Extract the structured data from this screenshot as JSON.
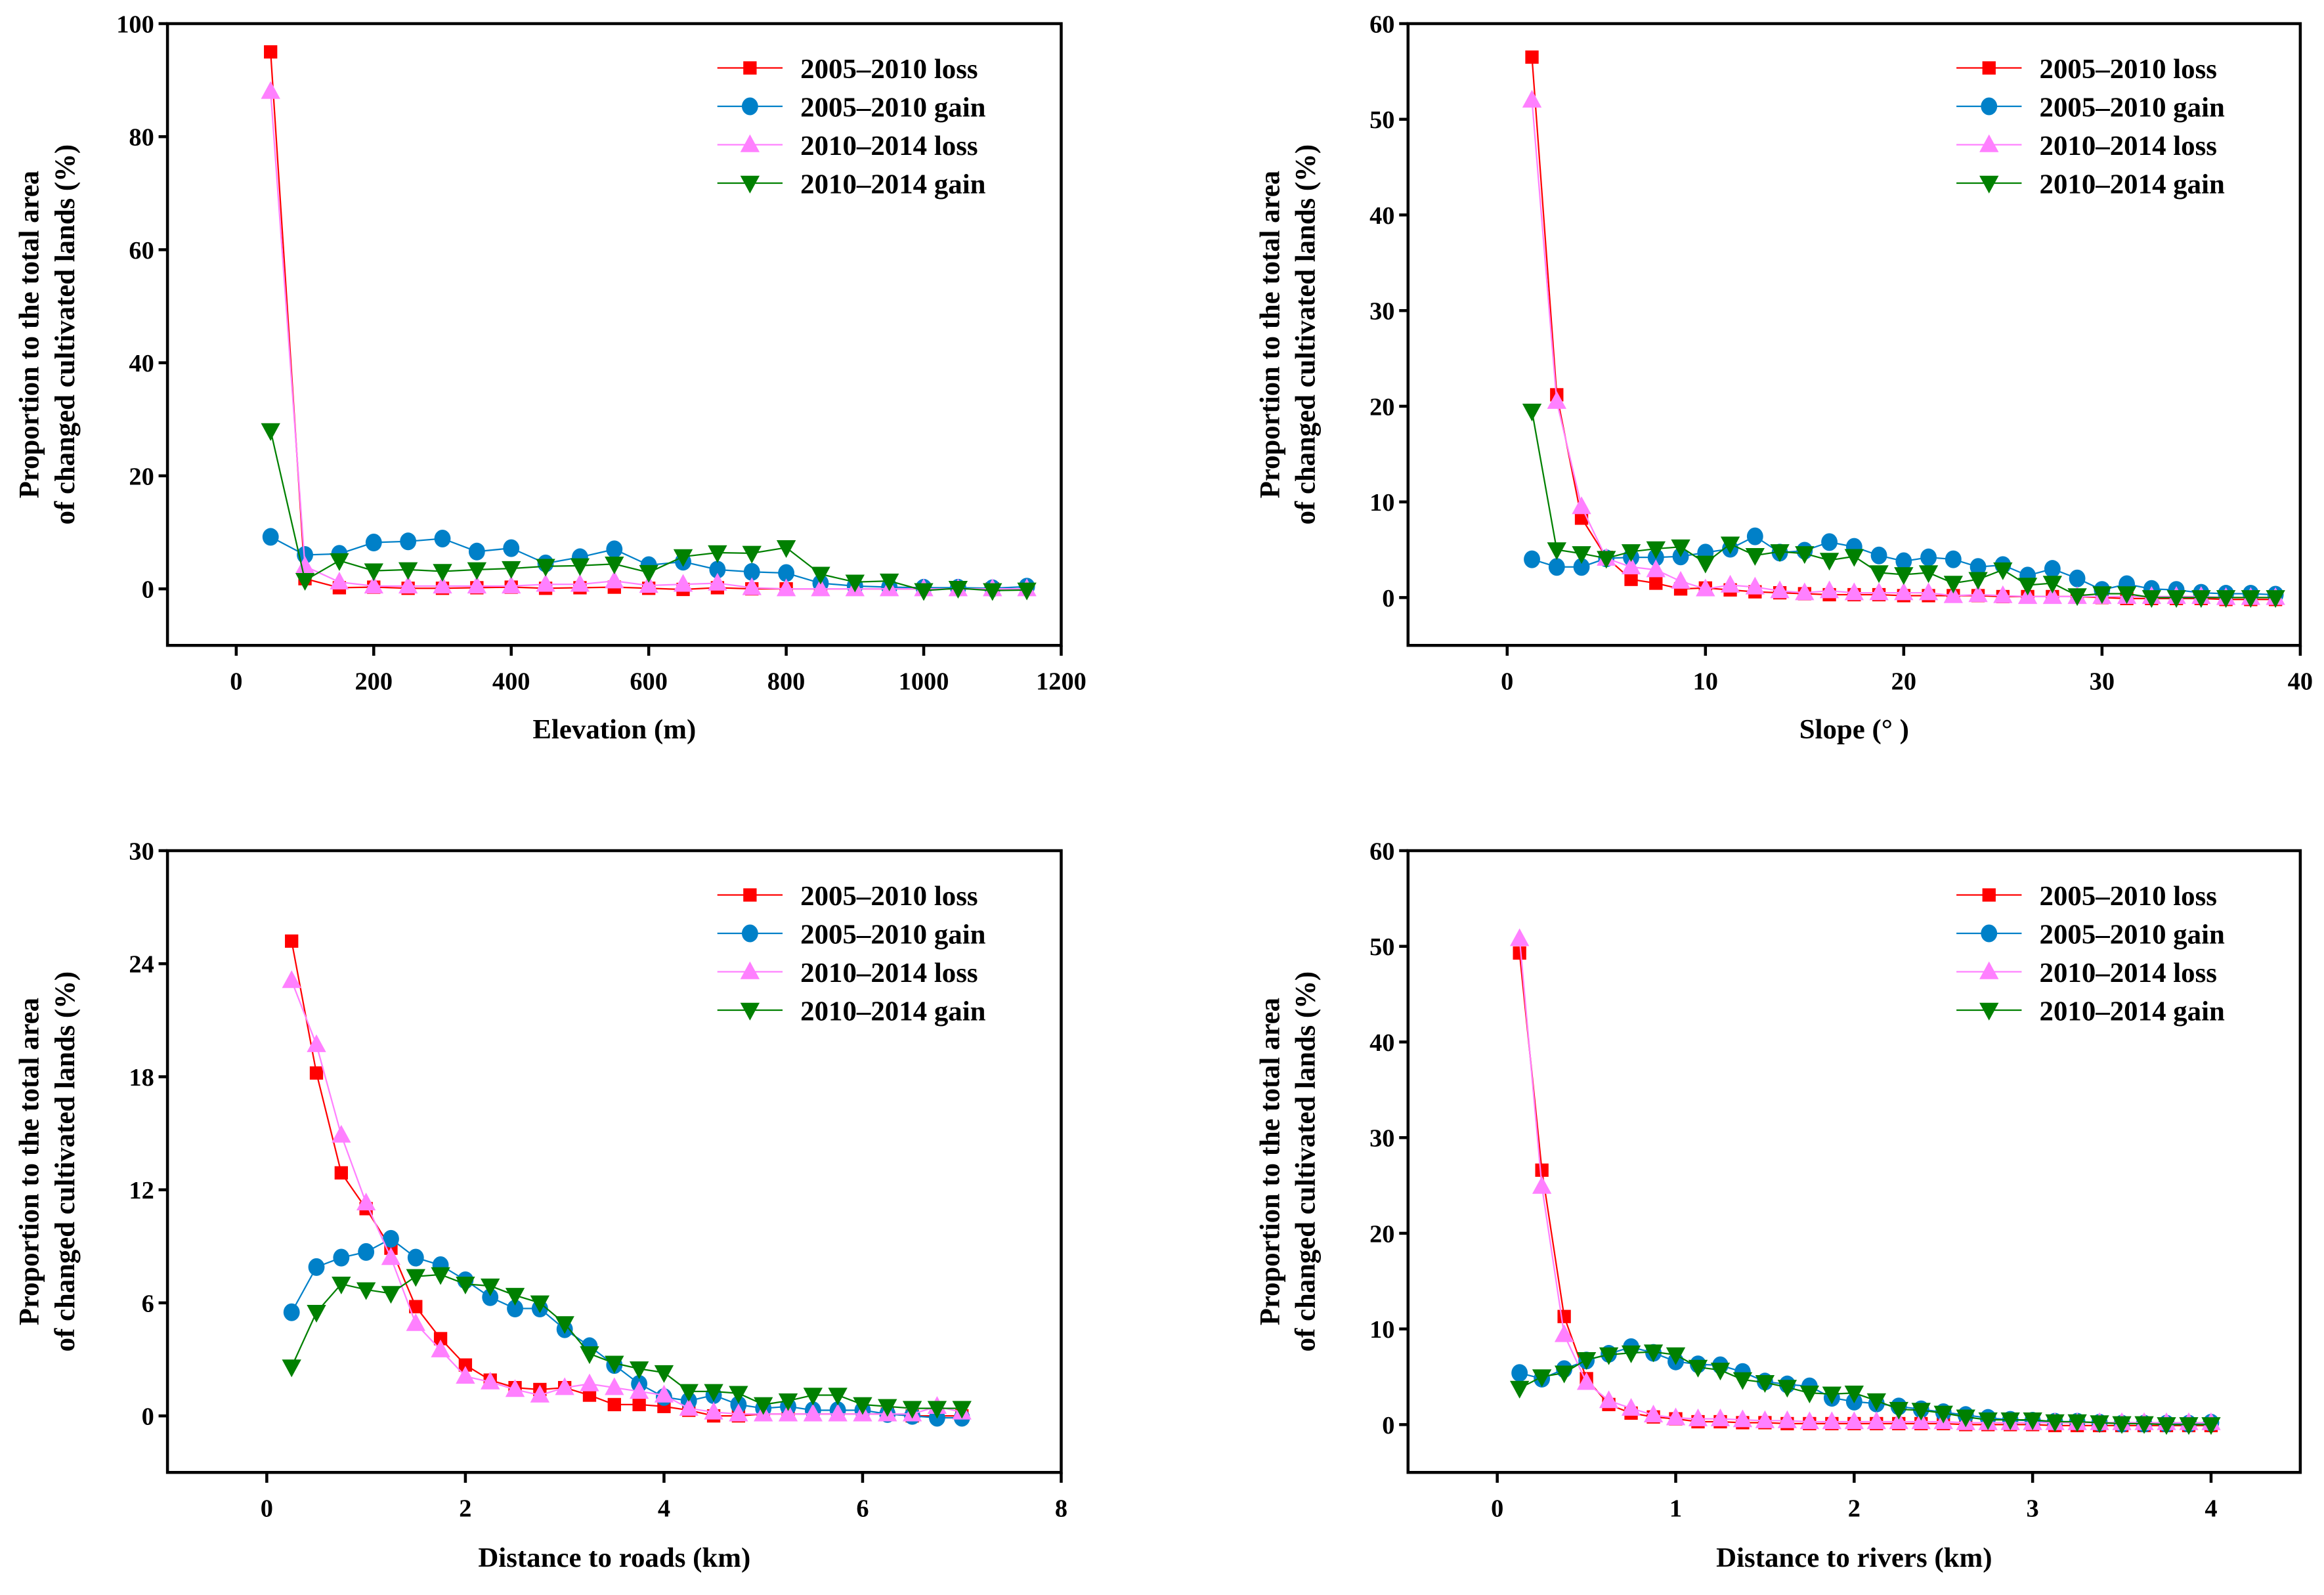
{
  "figure": {
    "legend_labels": [
      "2005–2010 loss",
      "2005–2010 gain",
      "2010–2014 loss",
      "2010–2014 gain"
    ],
    "series_styles": [
      {
        "name": "2005–2010 loss",
        "color": "#ff0000",
        "marker": "square"
      },
      {
        "name": "2005–2010 gain",
        "color": "#0080c8",
        "marker": "circle"
      },
      {
        "name": "2010–2014 loss",
        "color": "#ff80ff",
        "marker": "triangle-up"
      },
      {
        "name": "2010–2014 gain",
        "color": "#008000",
        "marker": "triangle-down"
      }
    ],
    "ylabel_line1": "Proportion to the total area",
    "ylabel_line2": "of changed cultivated lands (%)"
  },
  "chart_data": [
    {
      "type": "line",
      "title": "",
      "xlabel": "Elevation (m)",
      "ylabel": "Proportion to the total area of changed cultivated lands (%)",
      "xlim": [
        -100,
        1200
      ],
      "ylim": [
        -10,
        100
      ],
      "xticks": [
        0,
        200,
        400,
        600,
        800,
        1000,
        1200
      ],
      "yticks": [
        0,
        20,
        40,
        60,
        80,
        100
      ],
      "legend": "top-right",
      "grid": false,
      "x": [
        50,
        100,
        150,
        200,
        250,
        300,
        350,
        400,
        450,
        500,
        550,
        600,
        650,
        700,
        750,
        800,
        850,
        900,
        950,
        1000,
        1050,
        1100,
        1150
      ],
      "series": [
        {
          "name": "2005–2010 loss",
          "values": [
            95,
            1.8,
            0.2,
            0.3,
            0.1,
            0.1,
            0.2,
            0.3,
            0.1,
            0.2,
            0.3,
            0.1,
            -0.1,
            0.2,
            0,
            0,
            0,
            0,
            0,
            0,
            0,
            0,
            0
          ]
        },
        {
          "name": "2005–2010 gain",
          "values": [
            9.2,
            6,
            6.2,
            8.2,
            8.4,
            8.9,
            6.6,
            7.2,
            4.5,
            5.6,
            7,
            4.2,
            4.8,
            3.4,
            3,
            2.8,
            1,
            0.5,
            0.3,
            0.2,
            0.2,
            0.1,
            0.4
          ]
        },
        {
          "name": "2010–2014 loss",
          "values": [
            88,
            4,
            1.2,
            0.5,
            0.5,
            0.5,
            0.5,
            0.5,
            0.8,
            0.8,
            1.4,
            0.6,
            0.8,
            1,
            0.2,
            0,
            0,
            0,
            0,
            0,
            0,
            0,
            0
          ]
        },
        {
          "name": "2010–2014 gain",
          "values": [
            28,
            1.5,
            5,
            3.2,
            3.4,
            3.1,
            3.4,
            3.6,
            4,
            4.1,
            4.4,
            2.9,
            5.7,
            6.4,
            6.3,
            7.3,
            2.6,
            1.2,
            1.4,
            -0.3,
            0.1,
            -0.3,
            -0.2
          ]
        }
      ]
    },
    {
      "type": "line",
      "title": "",
      "xlabel": "Slope (° )",
      "ylabel": "Proportion to the total area of changed cultivated lands (%)",
      "xlim": [
        -5,
        40
      ],
      "ylim": [
        -5,
        60
      ],
      "xticks": [
        0,
        10,
        20,
        30,
        40
      ],
      "yticks": [
        0,
        10,
        20,
        30,
        40,
        50,
        60
      ],
      "legend": "top-right",
      "grid": false,
      "x": [
        1.25,
        2.5,
        3.75,
        5,
        6.25,
        7.5,
        8.75,
        10,
        11.25,
        12.5,
        13.75,
        15,
        16.25,
        17.5,
        18.75,
        20,
        21.25,
        22.5,
        23.75,
        25,
        26.25,
        27.5,
        28.75,
        30,
        31.25,
        32.5,
        33.75,
        35,
        36.25,
        37.5,
        38.75
      ],
      "series": [
        {
          "name": "2005–2010 loss",
          "values": [
            56.5,
            21.2,
            8.3,
            4.2,
            1.9,
            1.5,
            0.9,
            1,
            0.8,
            0.6,
            0.5,
            0.4,
            0.3,
            0.3,
            0.3,
            0.2,
            0.2,
            0.2,
            0.2,
            0.1,
            0.1,
            0.1,
            0.1,
            0,
            -0.1,
            -0.1,
            -0.1,
            -0.1,
            -0.2,
            -0.2,
            -0.2
          ]
        },
        {
          "name": "2005–2010 gain",
          "values": [
            4,
            3.2,
            3.2,
            4.1,
            4.2,
            4.2,
            4.3,
            4.7,
            5.1,
            6.4,
            4.7,
            4.9,
            5.8,
            5.3,
            4.4,
            3.8,
            4.2,
            4.0,
            3.2,
            3.4,
            2.3,
            3.0,
            2,
            0.8,
            1.4,
            0.9,
            0.8,
            0.5,
            0.4,
            0.4,
            0.3
          ]
        },
        {
          "name": "2010–2014 loss",
          "values": [
            52,
            20.5,
            9.5,
            4.1,
            3.2,
            2.9,
            1.7,
            0.9,
            1.3,
            1.1,
            0.7,
            0.5,
            0.7,
            0.5,
            0.5,
            0.5,
            0.5,
            0.2,
            0.3,
            0.2,
            0.1,
            0.1,
            0.1,
            0.1,
            0.1,
            0.1,
            0.1,
            0.1,
            0,
            0,
            0
          ]
        },
        {
          "name": "2010–2014 gain",
          "values": [
            19.5,
            5,
            4.6,
            4.1,
            4.8,
            5.1,
            5.3,
            3.6,
            5.6,
            4.4,
            4.8,
            4.6,
            3.9,
            4.3,
            2.6,
            2.4,
            2.6,
            1.5,
            1.9,
            2.9,
            1.3,
            1.5,
            0.2,
            0.4,
            0.4,
            0,
            0,
            0,
            0,
            0,
            0
          ]
        }
      ]
    },
    {
      "type": "line",
      "title": "",
      "xlabel": "Distance to roads (km)",
      "ylabel": "Proportion to the total area of changed cultivated lands (%)",
      "xlim": [
        -1,
        8
      ],
      "ylim": [
        -3,
        30
      ],
      "xticks": [
        0,
        2,
        4,
        6,
        8
      ],
      "yticks": [
        0,
        6,
        12,
        18,
        24,
        30
      ],
      "legend": "top-right",
      "grid": false,
      "x": [
        0.25,
        0.5,
        0.75,
        1,
        1.25,
        1.5,
        1.75,
        2,
        2.25,
        2.5,
        2.75,
        3,
        3.25,
        3.5,
        3.75,
        4,
        4.25,
        4.5,
        4.75,
        5,
        5.25,
        5.5,
        5.75,
        6,
        6.25,
        6.5,
        6.75,
        7
      ],
      "series": [
        {
          "name": "2005–2010 loss",
          "values": [
            25.2,
            18.2,
            12.9,
            11,
            8.9,
            5.8,
            4.1,
            2.7,
            1.9,
            1.5,
            1.4,
            1.5,
            1.1,
            0.6,
            0.6,
            0.5,
            0.3,
            0,
            0,
            0.1,
            0.1,
            0.1,
            0.1,
            0.1,
            0.1,
            0,
            0,
            0
          ]
        },
        {
          "name": "2005–2010 gain",
          "values": [
            5.5,
            7.9,
            8.4,
            8.7,
            9.4,
            8.4,
            8,
            7.2,
            6.3,
            5.7,
            5.7,
            4.6,
            3.7,
            2.7,
            1.7,
            1,
            0.8,
            1.1,
            0.6,
            0.4,
            0.5,
            0.3,
            0.3,
            0.3,
            0.1,
            0,
            -0.1,
            -0.1
          ]
        },
        {
          "name": "2010–2014 loss",
          "values": [
            23.1,
            19.7,
            14.9,
            11.3,
            8.4,
            4.9,
            3.5,
            2.1,
            1.8,
            1.4,
            1.1,
            1.5,
            1.7,
            1.5,
            1.3,
            1.1,
            0.4,
            0.2,
            0.1,
            0.1,
            0.1,
            0.1,
            0.1,
            0.1,
            0.1,
            0.1,
            0.5,
            0.2
          ]
        },
        {
          "name": "2010–2014 gain",
          "values": [
            2.6,
            5.5,
            7,
            6.7,
            6.5,
            7.4,
            7.5,
            7,
            6.9,
            6.4,
            6,
            4.9,
            3.3,
            2.8,
            2.5,
            2.3,
            1.3,
            1.3,
            1.2,
            0.6,
            0.8,
            1.1,
            1.1,
            0.6,
            0.5,
            0.4,
            0.4,
            0.4
          ]
        }
      ]
    },
    {
      "type": "line",
      "title": "",
      "xlabel": "Distance to rivers (km)",
      "ylabel": "Proportion to the total area of changed cultivated lands (%)",
      "xlim": [
        -0.5,
        4.5
      ],
      "ylim": [
        -5,
        60
      ],
      "xticks": [
        0,
        1,
        2,
        3,
        4
      ],
      "yticks": [
        0,
        10,
        20,
        30,
        40,
        50,
        60
      ],
      "legend": "top-right",
      "grid": false,
      "x": [
        0.125,
        0.25,
        0.375,
        0.5,
        0.625,
        0.75,
        0.875,
        1,
        1.125,
        1.25,
        1.375,
        1.5,
        1.625,
        1.75,
        1.875,
        2,
        2.125,
        2.25,
        2.375,
        2.5,
        2.625,
        2.75,
        2.875,
        3,
        3.125,
        3.25,
        3.375,
        3.5,
        3.625,
        3.75,
        3.875,
        4
      ],
      "series": [
        {
          "name": "2005–2010 loss",
          "values": [
            49.3,
            26.6,
            11.3,
            4.8,
            2.1,
            1.2,
            0.8,
            0.6,
            0.3,
            0.3,
            0.2,
            0.2,
            0.1,
            0.1,
            0.1,
            0.1,
            0.1,
            0.1,
            0.1,
            0.1,
            0,
            0,
            0,
            0,
            -0.1,
            -0.1,
            -0.1,
            -0.1,
            -0.1,
            -0.1,
            -0.1,
            -0.1
          ]
        },
        {
          "name": "2005–2010 gain",
          "values": [
            5.4,
            4.8,
            5.8,
            6.7,
            7.4,
            8.1,
            7.5,
            6.6,
            6.3,
            6.2,
            5.5,
            4.5,
            4.2,
            4,
            2.8,
            2.4,
            2.2,
            1.9,
            1.6,
            1.3,
            1,
            0.7,
            0.5,
            0.4,
            0.3,
            0.3,
            0.2,
            0.1,
            0.1,
            0.1,
            0.1,
            0.2
          ]
        },
        {
          "name": "2010–2014 loss",
          "values": [
            50.8,
            24.9,
            9.4,
            4.4,
            2.5,
            1.7,
            1.0,
            0.7,
            0.6,
            0.6,
            0.5,
            0.4,
            0.4,
            0.3,
            0.3,
            0.3,
            0.3,
            0.3,
            0.3,
            0.3,
            0.2,
            0.2,
            0.2,
            0.2,
            0.2,
            0.2,
            0.2,
            0.2,
            0.2,
            0.2,
            0.2,
            0.2
          ]
        },
        {
          "name": "2010–2014 gain",
          "values": [
            3.8,
            5,
            5.4,
            6.8,
            7.3,
            7.5,
            7.6,
            7.3,
            6,
            5.7,
            4.7,
            4.4,
            3.9,
            3.3,
            3.2,
            3.3,
            2.5,
            1.6,
            1.5,
            1.2,
            0.8,
            0.5,
            0.5,
            0.5,
            0.3,
            0.3,
            0.2,
            0.1,
            0.1,
            0,
            0,
            0
          ]
        }
      ]
    }
  ]
}
